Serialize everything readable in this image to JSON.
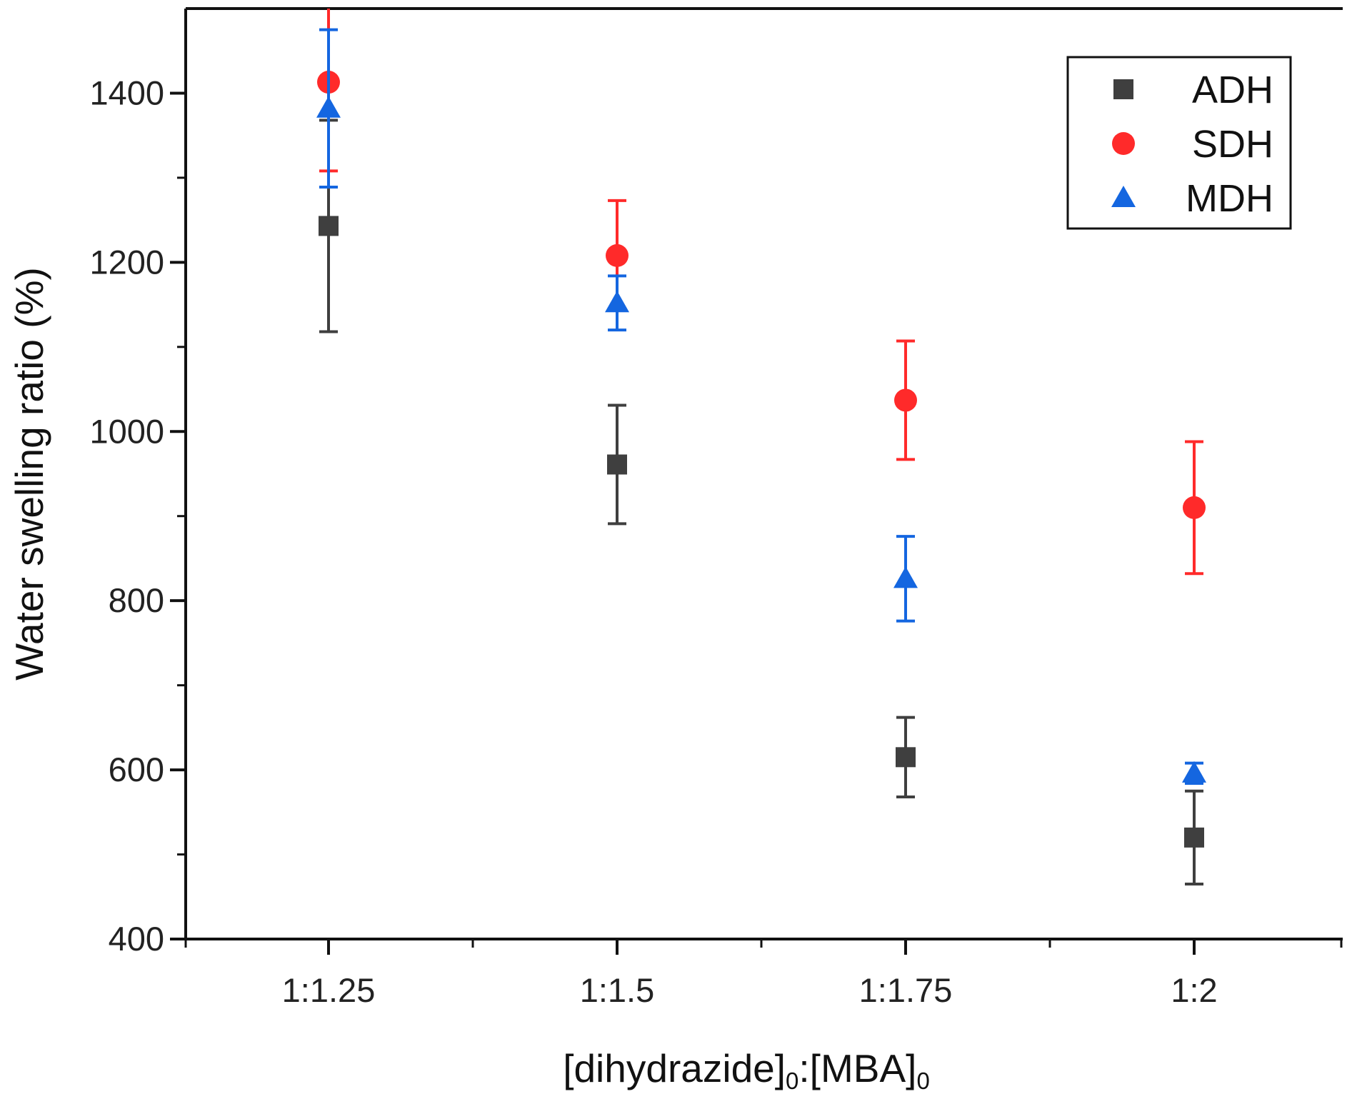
{
  "chart_data": {
    "type": "scatter",
    "title": "",
    "xlabel": {
      "main": "[dihydrazide]",
      "sub1": "0",
      "mid": ":[MBA]",
      "sub2": "0"
    },
    "ylabel": "Water swelling ratio (%)",
    "categories": [
      "1:1.25",
      "1:1.5",
      "1:1.75",
      "1:2"
    ],
    "ylim": [
      400,
      1500
    ],
    "yticks": [
      400,
      600,
      800,
      1000,
      1200,
      1400
    ],
    "legend_position": "top-right",
    "series": [
      {
        "name": "ADH",
        "marker": "square",
        "color": "#3f3f3f",
        "values": [
          1243,
          961,
          615,
          520
        ],
        "errors": [
          125,
          70,
          47,
          55
        ]
      },
      {
        "name": "SDH",
        "marker": "circle",
        "color": "#ff2a2a",
        "values": [
          1413,
          1208,
          1037,
          910
        ],
        "errors": [
          105,
          65,
          70,
          78
        ]
      },
      {
        "name": "MDH",
        "marker": "triangle",
        "color": "#1466e0",
        "values": [
          1382,
          1152,
          826,
          596
        ],
        "errors": [
          93,
          32,
          50,
          12
        ]
      }
    ]
  }
}
